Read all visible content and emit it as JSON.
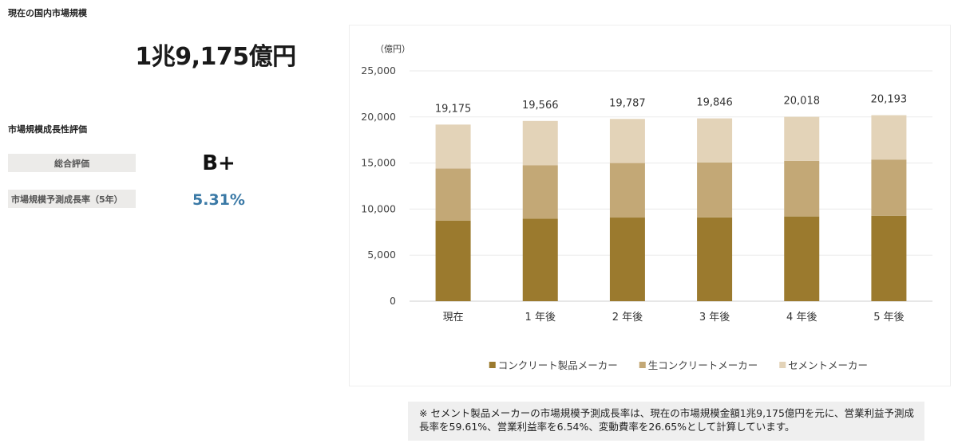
{
  "market": {
    "title": "現在の国内市場規模",
    "size": "1兆9,175億円"
  },
  "growth": {
    "title": "市場規模成長性評価",
    "overall_label": "総合評価",
    "overall_value": "B+",
    "cagr_label": "市場規模予測成長率（5年）",
    "cagr_value": "5.31%",
    "cagr_color": "#3a79a6"
  },
  "chart_data": {
    "type": "bar",
    "stacked": true,
    "unit_label": "（億円）",
    "categories": [
      "現在",
      "1 年後",
      "2 年後",
      "3 年後",
      "4 年後",
      "5 年後"
    ],
    "ylim": [
      0,
      25000
    ],
    "yticks": [
      0,
      5000,
      10000,
      15000,
      20000,
      25000
    ],
    "ytick_labels": [
      "0",
      "5,000",
      "10,000",
      "15,000",
      "20,000",
      "25,000"
    ],
    "grid": true,
    "legend_position": "bottom",
    "totals": [
      19175,
      19566,
      19787,
      19846,
      20018,
      20193
    ],
    "total_labels": [
      "19,175",
      "19,566",
      "19,787",
      "19,846",
      "20,018",
      "20,193"
    ],
    "series": [
      {
        "name": "コンクリート製品メーカー",
        "color": "#9b7a2e",
        "values": [
          8750,
          8950,
          9080,
          9100,
          9200,
          9280
        ]
      },
      {
        "name": "生コンクリートメーカー",
        "color": "#c3a876",
        "values": [
          5650,
          5800,
          5920,
          5960,
          6030,
          6100
        ]
      },
      {
        "name": "セメントメーカー",
        "color": "#e3d3b8",
        "values": [
          4775,
          4816,
          4787,
          4786,
          4788,
          4813
        ]
      }
    ]
  },
  "note": {
    "text": "※ セメント製品メーカーの市場規模予測成長率は、現在の市場規模金額1兆9,175億円を元に、営業利益予測成長率を59.61%、営業利益率を6.54%、変動費率を26.65%として計算しています。"
  }
}
